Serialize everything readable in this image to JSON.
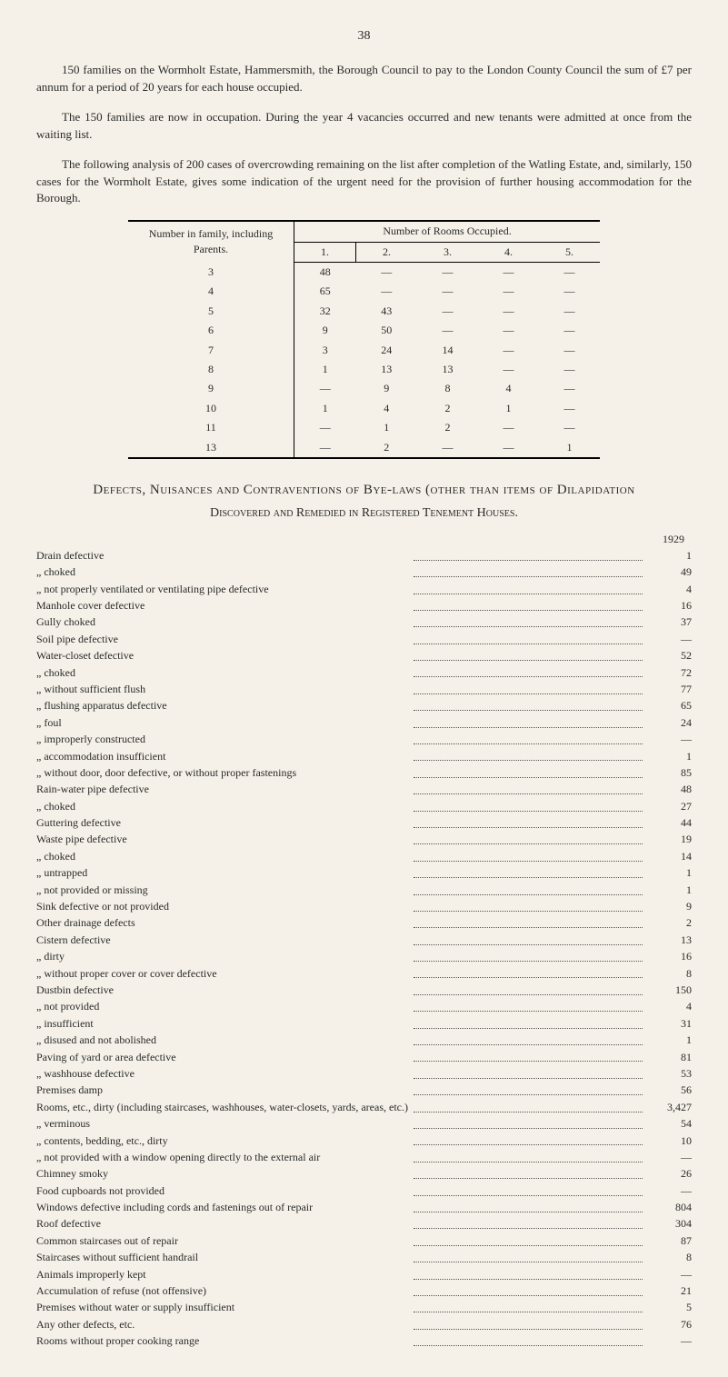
{
  "page_number": "38",
  "paragraphs": [
    "150 families on the Wormholt Estate, Hammersmith, the Borough Council to pay to the London County Council the sum of £7 per annum for a period of 20 years for each house occupied.",
    "The 150 families are now in occupation. During the year 4 vacancies occurred and new tenants were admitted at once from the waiting list.",
    "The following analysis of 200 cases of overcrowding remaining on the list after completion of the Watling Estate, and, similarly, 150 cases for the Wormholt Estate, gives some indication of the urgent need for the provision of further housing accommodation for the Borough."
  ],
  "rooms_table": {
    "col1_header": "Number in family, including Parents.",
    "col_group_header": "Number of Rooms Occupied.",
    "sub_headers": [
      "1.",
      "2.",
      "3.",
      "4.",
      "5."
    ],
    "rows": [
      {
        "n": "3",
        "cells": [
          "48",
          "—",
          "—",
          "—",
          "—"
        ]
      },
      {
        "n": "4",
        "cells": [
          "65",
          "—",
          "—",
          "—",
          "—"
        ]
      },
      {
        "n": "5",
        "cells": [
          "32",
          "43",
          "—",
          "—",
          "—"
        ]
      },
      {
        "n": "6",
        "cells": [
          "9",
          "50",
          "—",
          "—",
          "—"
        ]
      },
      {
        "n": "7",
        "cells": [
          "3",
          "24",
          "14",
          "—",
          "—"
        ]
      },
      {
        "n": "8",
        "cells": [
          "1",
          "13",
          "13",
          "—",
          "—"
        ]
      },
      {
        "n": "9",
        "cells": [
          "—",
          "9",
          "8",
          "4",
          "—"
        ]
      },
      {
        "n": "10",
        "cells": [
          "1",
          "4",
          "2",
          "1",
          "—"
        ]
      },
      {
        "n": "11",
        "cells": [
          "—",
          "1",
          "2",
          "—",
          "—"
        ]
      },
      {
        "n": "13",
        "cells": [
          "—",
          "2",
          "—",
          "—",
          "1"
        ]
      }
    ]
  },
  "section_heading": "Defects, Nuisances and Contraventions of Bye-laws (other than items of Dilapidation",
  "sub_heading": "Discovered and Remedied in Registered Tenement Houses.",
  "year": "1929",
  "defects": [
    {
      "label": "Drain defective",
      "indent": 0,
      "val": "1"
    },
    {
      "label": "„  choked",
      "indent": 1,
      "val": "49"
    },
    {
      "label": "„  not properly ventilated or ventilating pipe defective",
      "indent": 1,
      "val": "4"
    },
    {
      "label": "Manhole cover defective",
      "indent": 0,
      "val": "16"
    },
    {
      "label": "Gully choked",
      "indent": 0,
      "val": "37"
    },
    {
      "label": "Soil pipe defective",
      "indent": 0,
      "val": "—"
    },
    {
      "label": "Water-closet defective",
      "indent": 0,
      "val": "52"
    },
    {
      "label": "„  choked",
      "indent": 2,
      "val": "72"
    },
    {
      "label": "„  without sufficient flush",
      "indent": 2,
      "val": "77"
    },
    {
      "label": "„  flushing apparatus defective",
      "indent": 2,
      "val": "65"
    },
    {
      "label": "„  foul",
      "indent": 2,
      "val": "24"
    },
    {
      "label": "„  improperly constructed",
      "indent": 2,
      "val": "—"
    },
    {
      "label": "„  accommodation insufficient",
      "indent": 2,
      "val": "1"
    },
    {
      "label": "„  without door, door defective, or without proper fastenings",
      "indent": 2,
      "val": "85"
    },
    {
      "label": "Rain-water pipe defective",
      "indent": 0,
      "val": "48"
    },
    {
      "label": "„  choked",
      "indent": 2,
      "val": "27"
    },
    {
      "label": "Guttering defective",
      "indent": 0,
      "val": "44"
    },
    {
      "label": "Waste pipe defective",
      "indent": 0,
      "val": "19"
    },
    {
      "label": "„  choked",
      "indent": 1,
      "val": "14"
    },
    {
      "label": "„  untrapped",
      "indent": 1,
      "val": "1"
    },
    {
      "label": "„  not provided or missing",
      "indent": 1,
      "val": "1"
    },
    {
      "label": "Sink defective or not provided",
      "indent": 0,
      "val": "9"
    },
    {
      "label": "Other drainage defects",
      "indent": 0,
      "val": "2"
    },
    {
      "label": "Cistern defective",
      "indent": 0,
      "val": "13"
    },
    {
      "label": "„  dirty",
      "indent": 1,
      "val": "16"
    },
    {
      "label": "„  without proper cover or cover defective",
      "indent": 1,
      "val": "8"
    },
    {
      "label": "Dustbin defective",
      "indent": 0,
      "val": "150"
    },
    {
      "label": "„  not provided",
      "indent": 1,
      "val": "4"
    },
    {
      "label": "„  insufficient",
      "indent": 1,
      "val": "31"
    },
    {
      "label": "„  disused and not abolished",
      "indent": 1,
      "val": "1"
    },
    {
      "label": "Paving of yard or area defective",
      "indent": 0,
      "val": "81"
    },
    {
      "label": "„  washhouse defective",
      "indent": 1,
      "val": "53"
    },
    {
      "label": "Premises damp",
      "indent": 0,
      "val": "56"
    },
    {
      "label": "Rooms, etc., dirty (including staircases, washhouses, water-closets, yards, areas, etc.)",
      "indent": 0,
      "val": "3,427"
    },
    {
      "label": "„  verminous",
      "indent": 1,
      "val": "54"
    },
    {
      "label": "„  contents, bedding, etc., dirty",
      "indent": 1,
      "val": "10"
    },
    {
      "label": "„  not provided with a window opening directly to the external air",
      "indent": 1,
      "val": "—"
    },
    {
      "label": "Chimney smoky",
      "indent": 0,
      "val": "26"
    },
    {
      "label": "Food cupboards not provided",
      "indent": 0,
      "val": "—"
    },
    {
      "label": "Windows defective including cords and fastenings out of repair",
      "indent": 0,
      "val": "804"
    },
    {
      "label": "Roof defective",
      "indent": 0,
      "val": "304"
    },
    {
      "label": "Common staircases out of repair",
      "indent": 0,
      "val": "87"
    },
    {
      "label": "Staircases without sufficient handrail",
      "indent": 0,
      "val": "8"
    },
    {
      "label": "Animals improperly kept",
      "indent": 0,
      "val": "—"
    },
    {
      "label": "Accumulation of refuse (not offensive)",
      "indent": 0,
      "val": "21"
    },
    {
      "label": "Premises without water or supply insufficient",
      "indent": 0,
      "val": "5"
    },
    {
      "label": "Any other defects, etc.",
      "indent": 0,
      "val": "76"
    },
    {
      "label": "Rooms without proper cooking range",
      "indent": 0,
      "val": "—"
    }
  ]
}
